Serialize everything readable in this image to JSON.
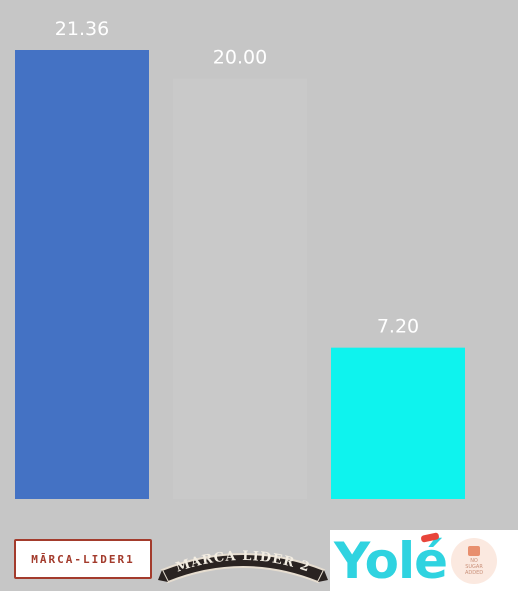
{
  "chart_data": {
    "type": "bar",
    "categories": [
      "MARCA-LIDER 1",
      "MARCA LIDER 2",
      "Yolé"
    ],
    "values": [
      21.36,
      20.0,
      7.2
    ],
    "value_labels": [
      "21.36",
      "20.00",
      "7.20"
    ],
    "bar_colors": [
      "#4472c4",
      "#c9c9c9",
      "#0ef3ee"
    ],
    "ylim": [
      0,
      21.36
    ],
    "grid": false,
    "legend": "none",
    "background": "#c6c6c6",
    "label_color": "#ffffff"
  },
  "logos": {
    "logo1": {
      "text": "MĀRCA-LIDER1",
      "icon": "marca-lider-1-logo"
    },
    "logo2": {
      "text": "MARCA LIDER 2",
      "icon": "marca-lider-2-logo"
    },
    "logo3": {
      "text": "Yolé",
      "badge_text_1": "NO",
      "badge_text_2": "SUGAR",
      "badge_text_3": "ADDED",
      "icon": "yole-logo",
      "brand_color": "#2fd3e0",
      "accent_color": "#e8453b"
    }
  }
}
